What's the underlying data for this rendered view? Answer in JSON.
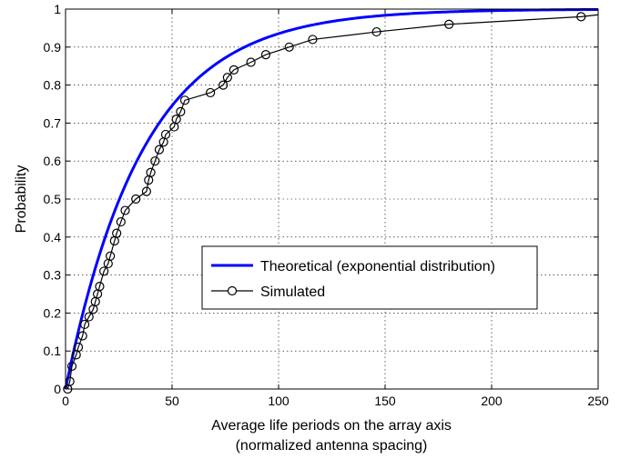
{
  "chart_data": {
    "type": "line",
    "xlabel_lines": [
      "Average life periods on the array axis",
      "(normalized antenna spacing)"
    ],
    "ylabel": "Probability",
    "xlim": [
      0,
      250
    ],
    "ylim": [
      0,
      1
    ],
    "x_ticks": [
      0,
      50,
      100,
      150,
      200,
      250
    ],
    "y_ticks": [
      0,
      0.1,
      0.2,
      0.3,
      0.4,
      0.5,
      0.6,
      0.7,
      0.8,
      0.9,
      1
    ],
    "grid": true,
    "legend_position": "center-right",
    "series": [
      {
        "name": "Theoretical (exponential distribution)",
        "style": "line",
        "color": "#0000ff",
        "mean": 36.5,
        "x": [
          0,
          5,
          10,
          15,
          20,
          25,
          30,
          35,
          40,
          45,
          50,
          60,
          70,
          80,
          90,
          100,
          110,
          120,
          130,
          140,
          150,
          175,
          200,
          225,
          250
        ],
        "y": [
          0,
          0.128,
          0.239,
          0.337,
          0.422,
          0.496,
          0.56,
          0.616,
          0.666,
          0.708,
          0.746,
          0.807,
          0.854,
          0.889,
          0.915,
          0.935,
          0.951,
          0.963,
          0.972,
          0.978,
          0.983,
          0.992,
          0.996,
          0.998,
          0.999
        ]
      },
      {
        "name": "Simulated",
        "style": "line-circle",
        "color": "#000000",
        "x": [
          1,
          2,
          3,
          5,
          6,
          8,
          9,
          11,
          13,
          14,
          15,
          16,
          18,
          20,
          21,
          23,
          24,
          26,
          28,
          33,
          38,
          39,
          40,
          42,
          44,
          46,
          47,
          51,
          52,
          54,
          56,
          68,
          74,
          76,
          79,
          87,
          94,
          105,
          116,
          146,
          180,
          242
        ],
        "y": [
          0.0,
          0.02,
          0.06,
          0.09,
          0.11,
          0.14,
          0.17,
          0.19,
          0.21,
          0.23,
          0.25,
          0.27,
          0.31,
          0.33,
          0.35,
          0.39,
          0.41,
          0.44,
          0.47,
          0.5,
          0.52,
          0.55,
          0.57,
          0.6,
          0.63,
          0.65,
          0.67,
          0.69,
          0.71,
          0.73,
          0.76,
          0.78,
          0.8,
          0.82,
          0.84,
          0.86,
          0.88,
          0.9,
          0.92,
          0.94,
          0.96,
          0.98
        ]
      }
    ]
  }
}
